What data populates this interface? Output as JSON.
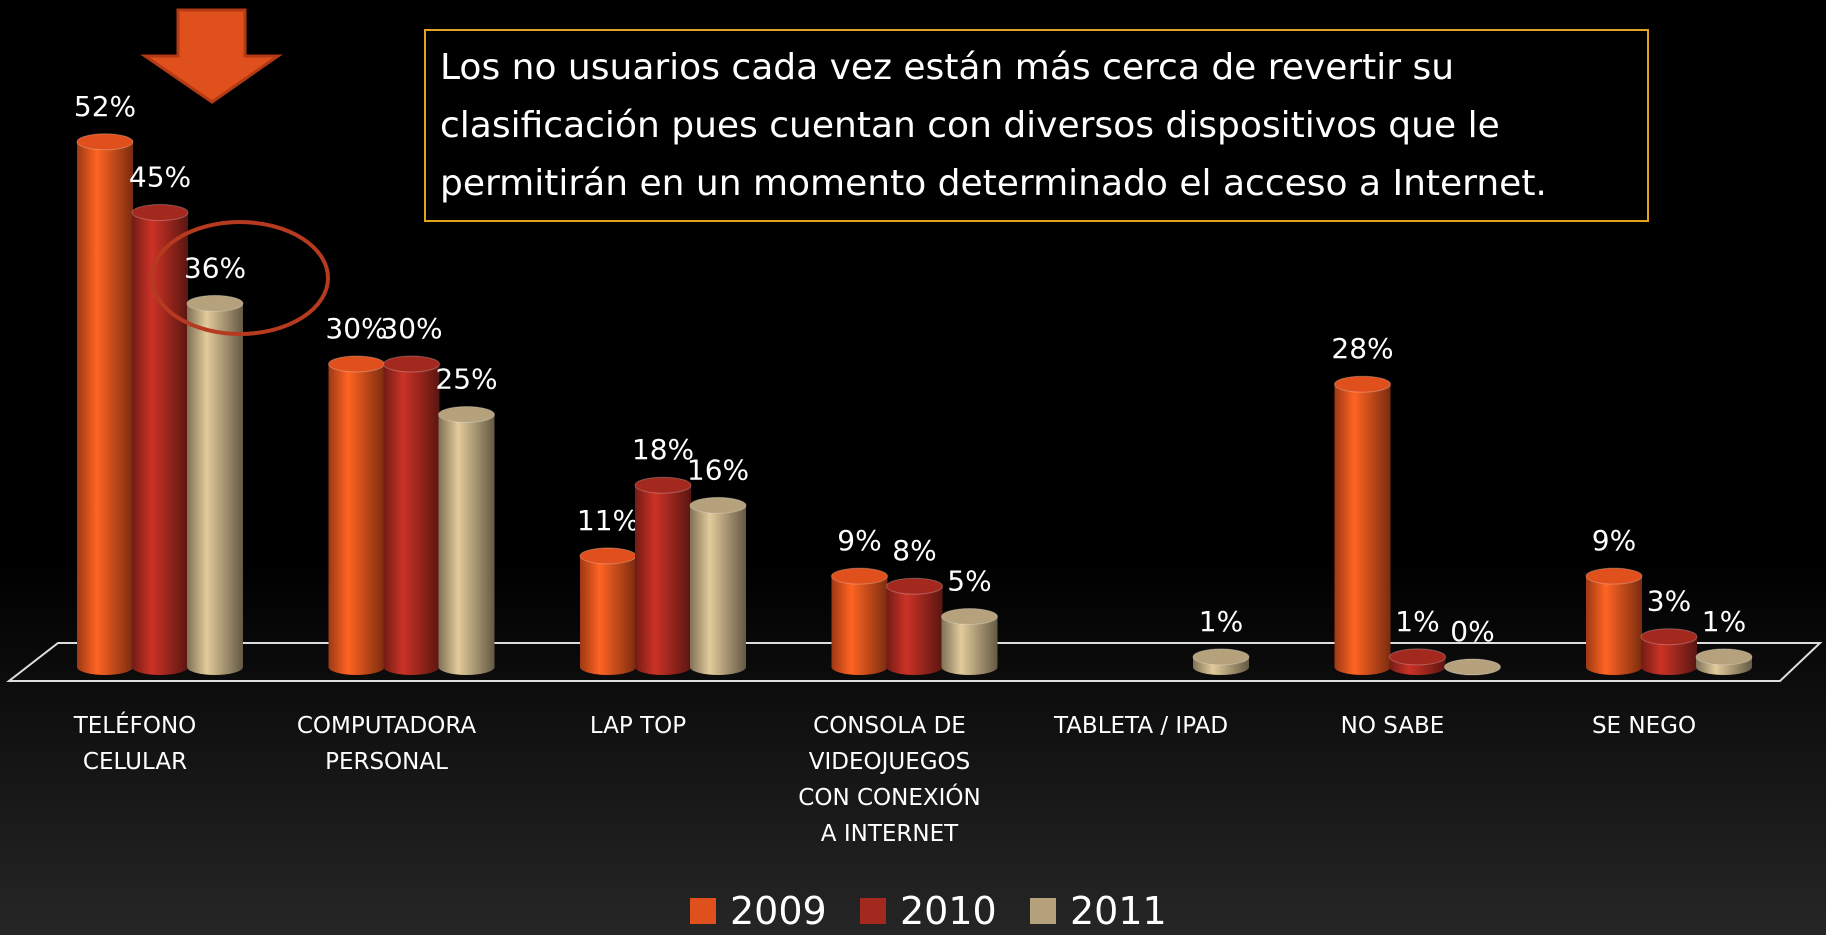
{
  "chart_data": {
    "type": "bar3d",
    "annotation": "Los no usuarios cada vez están más cerca de revertir su clasificación pues cuentan con diversos dispositivos que le permitirán en un momento determinado el acceso a Internet.",
    "categories": [
      "TELÉFONO\nCELULAR",
      "COMPUTADORA\nPERSONAL",
      "LAP TOP",
      "CONSOLA DE\nVIDEOJUEGOS\nCON CONEXIÓN\nA INTERNET",
      "TABLETA / IPAD",
      "NO SABE",
      "SE NEGO"
    ],
    "series": [
      {
        "name": "2009",
        "color": "#e0501c",
        "values": [
          52,
          30,
          11,
          9,
          null,
          28,
          9
        ],
        "value_labels": [
          "52%",
          "30%",
          "11%",
          "9%",
          null,
          "28%",
          "9%"
        ]
      },
      {
        "name": "2010",
        "color": "#a3281e",
        "values": [
          45,
          30,
          18,
          8,
          null,
          1,
          3
        ],
        "value_labels": [
          "45%",
          "30%",
          "18%",
          "8%",
          null,
          "1%",
          "3%"
        ]
      },
      {
        "name": "2011",
        "color": "#b5a27c",
        "values": [
          36,
          25,
          16,
          5,
          1,
          0,
          1
        ],
        "value_labels": [
          "36%",
          "25%",
          "16%",
          "5%",
          "1%",
          "0%",
          "1%"
        ]
      }
    ]
  }
}
